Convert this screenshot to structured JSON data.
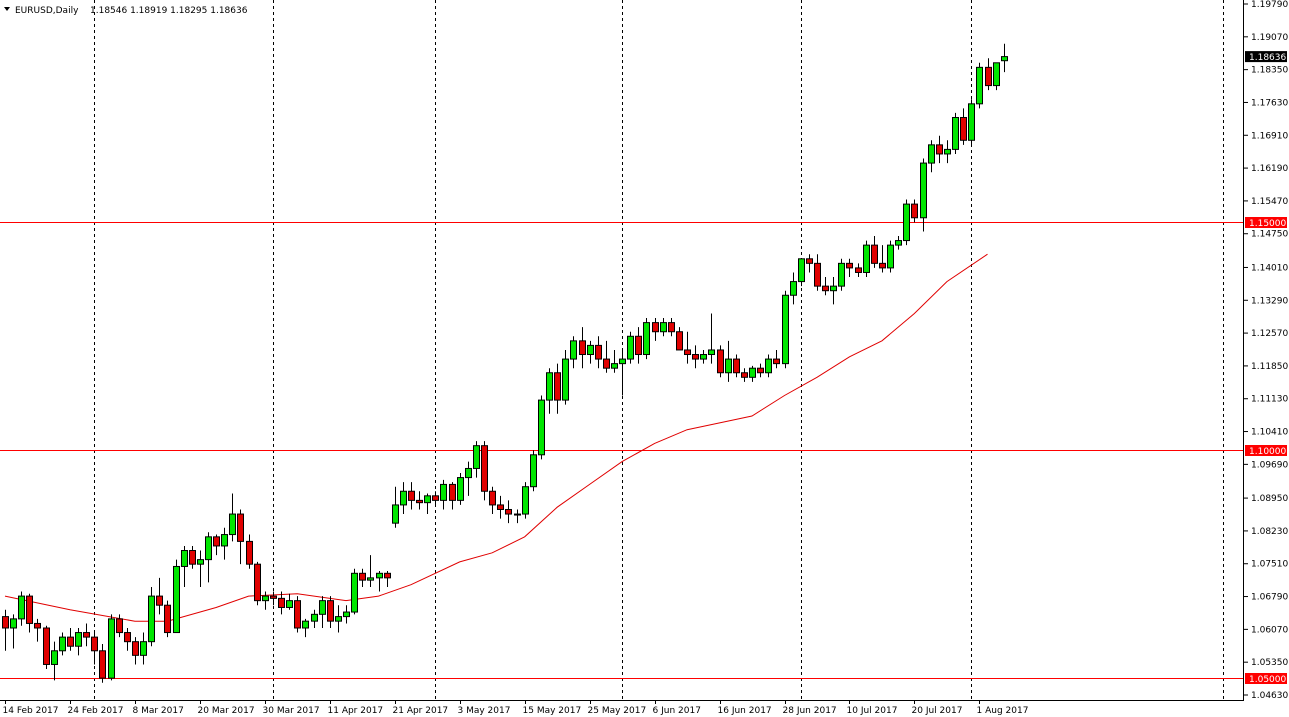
{
  "chart_data": {
    "type": "candlestick",
    "header": {
      "symbol": "EURUSD,Daily",
      "ohlc": "1.18546 1.18919 1.18295 1.18636"
    },
    "current_price": "1.18636",
    "ylim": [
      1.0463,
      1.1979
    ],
    "y_ticks": [
      "1.19790",
      "1.19070",
      "1.18350",
      "1.17630",
      "1.16910",
      "1.16190",
      "1.15470",
      "1.14750",
      "1.14010",
      "1.13290",
      "1.12570",
      "1.11850",
      "1.11130",
      "1.10410",
      "1.09690",
      "1.08950",
      "1.08230",
      "1.07510",
      "1.06790",
      "1.06070",
      "1.05350",
      "1.04630"
    ],
    "x_ticks": [
      {
        "i": 0,
        "label": "14 Feb 2017"
      },
      {
        "i": 8,
        "label": "24 Feb 2017"
      },
      {
        "i": 16,
        "label": "8 Mar 2017"
      },
      {
        "i": 24,
        "label": "20 Mar 2017"
      },
      {
        "i": 32,
        "label": "30 Mar 2017"
      },
      {
        "i": 40,
        "label": "11 Apr 2017"
      },
      {
        "i": 48,
        "label": "21 Apr 2017"
      },
      {
        "i": 56,
        "label": "3 May 2017"
      },
      {
        "i": 64,
        "label": "15 May 2017"
      },
      {
        "i": 72,
        "label": "25 May 2017"
      },
      {
        "i": 80,
        "label": "6 Jun 2017"
      },
      {
        "i": 88,
        "label": "16 Jun 2017"
      },
      {
        "i": 96,
        "label": "28 Jun 2017"
      },
      {
        "i": 104,
        "label": "10 Jul 2017"
      },
      {
        "i": 112,
        "label": "20 Jul 2017"
      },
      {
        "i": 120,
        "label": "1 Aug 2017"
      }
    ],
    "vertical_grid_at": [
      11,
      33,
      53,
      76,
      98,
      119,
      150
    ],
    "horizontal_levels": [
      {
        "value": 1.15,
        "label": "1.15000",
        "color": "#ff0000"
      },
      {
        "value": 1.1,
        "label": "1.10000",
        "color": "#ff0000"
      },
      {
        "value": 1.05,
        "label": "1.05000",
        "color": "#ff0000"
      }
    ],
    "moving_average": [
      {
        "i": 0,
        "y": 1.068
      },
      {
        "i": 8,
        "y": 1.065
      },
      {
        "i": 16,
        "y": 1.0625
      },
      {
        "i": 20,
        "y": 1.0625
      },
      {
        "i": 26,
        "y": 1.0655
      },
      {
        "i": 30,
        "y": 1.068
      },
      {
        "i": 36,
        "y": 1.0685
      },
      {
        "i": 42,
        "y": 1.067
      },
      {
        "i": 46,
        "y": 1.068
      },
      {
        "i": 50,
        "y": 1.0705
      },
      {
        "i": 56,
        "y": 1.0755
      },
      {
        "i": 60,
        "y": 1.0775
      },
      {
        "i": 64,
        "y": 1.081
      },
      {
        "i": 68,
        "y": 1.0875
      },
      {
        "i": 72,
        "y": 1.0925
      },
      {
        "i": 76,
        "y": 1.0975
      },
      {
        "i": 80,
        "y": 1.1015
      },
      {
        "i": 84,
        "y": 1.1045
      },
      {
        "i": 88,
        "y": 1.106
      },
      {
        "i": 92,
        "y": 1.1075
      },
      {
        "i": 96,
        "y": 1.112
      },
      {
        "i": 100,
        "y": 1.116
      },
      {
        "i": 104,
        "y": 1.1205
      },
      {
        "i": 108,
        "y": 1.124
      },
      {
        "i": 112,
        "y": 1.13
      },
      {
        "i": 116,
        "y": 1.137
      },
      {
        "i": 121,
        "y": 1.143
      }
    ],
    "candles": [
      [
        1.0635,
        1.065,
        1.056,
        1.061
      ],
      [
        1.061,
        1.064,
        1.0565,
        1.063
      ],
      [
        1.063,
        1.069,
        1.0615,
        1.068
      ],
      [
        1.068,
        1.0685,
        1.06,
        1.062
      ],
      [
        1.062,
        1.063,
        1.058,
        1.061
      ],
      [
        1.061,
        1.0615,
        1.052,
        1.053
      ],
      [
        1.053,
        1.058,
        1.0495,
        1.056
      ],
      [
        1.056,
        1.06,
        1.055,
        1.059
      ],
      [
        1.059,
        1.061,
        1.056,
        1.057
      ],
      [
        1.057,
        1.061,
        1.055,
        1.06
      ],
      [
        1.06,
        1.062,
        1.057,
        1.059
      ],
      [
        1.059,
        1.06,
        1.053,
        1.056
      ],
      [
        1.056,
        1.0575,
        1.049,
        1.05
      ],
      [
        1.05,
        1.064,
        1.0495,
        1.063
      ],
      [
        1.063,
        1.064,
        1.059,
        1.06
      ],
      [
        1.06,
        1.061,
        1.056,
        1.058
      ],
      [
        1.058,
        1.059,
        1.053,
        1.055
      ],
      [
        1.055,
        1.06,
        1.053,
        1.058
      ],
      [
        1.058,
        1.07,
        1.057,
        1.068
      ],
      [
        1.068,
        1.072,
        1.064,
        1.066
      ],
      [
        1.066,
        1.067,
        1.059,
        1.06
      ],
      [
        1.06,
        1.076,
        1.06,
        1.0745
      ],
      [
        1.0745,
        1.079,
        1.07,
        1.078
      ],
      [
        1.078,
        1.079,
        1.074,
        1.075
      ],
      [
        1.075,
        1.078,
        1.07,
        1.076
      ],
      [
        1.076,
        1.082,
        1.071,
        1.081
      ],
      [
        1.081,
        1.0815,
        1.077,
        1.079
      ],
      [
        1.079,
        1.083,
        1.076,
        1.0815
      ],
      [
        1.0815,
        1.0905,
        1.08,
        1.086
      ],
      [
        1.086,
        1.087,
        1.075,
        1.08
      ],
      [
        1.08,
        1.0815,
        1.074,
        1.075
      ],
      [
        1.075,
        1.0755,
        1.066,
        1.067
      ],
      [
        1.067,
        1.069,
        1.065,
        1.068
      ],
      [
        1.068,
        1.069,
        1.066,
        1.0675
      ],
      [
        1.0675,
        1.069,
        1.064,
        1.0655
      ],
      [
        1.0655,
        1.0685,
        1.065,
        1.067
      ],
      [
        1.067,
        1.068,
        1.06,
        1.061
      ],
      [
        1.061,
        1.063,
        1.059,
        1.0625
      ],
      [
        1.0625,
        1.065,
        1.061,
        1.064
      ],
      [
        1.064,
        1.068,
        1.061,
        1.067
      ],
      [
        1.067,
        1.068,
        1.061,
        1.0625
      ],
      [
        1.0625,
        1.066,
        1.06,
        1.0635
      ],
      [
        1.0635,
        1.066,
        1.062,
        1.0645
      ],
      [
        1.0645,
        1.074,
        1.064,
        1.073
      ],
      [
        1.073,
        1.074,
        1.07,
        1.0715
      ],
      [
        1.0715,
        1.077,
        1.07,
        1.072
      ],
      [
        1.072,
        1.0735,
        1.069,
        1.073
      ],
      [
        1.073,
        1.0735,
        1.07,
        1.072
      ],
      [
        1.084,
        1.092,
        1.083,
        1.088
      ],
      [
        1.088,
        1.093,
        1.086,
        1.091
      ],
      [
        1.091,
        1.093,
        1.087,
        1.089
      ],
      [
        1.089,
        1.091,
        1.087,
        1.0885
      ],
      [
        1.0885,
        1.0905,
        1.086,
        1.09
      ],
      [
        1.09,
        1.091,
        1.088,
        1.089
      ],
      [
        1.089,
        1.0935,
        1.087,
        1.0925
      ],
      [
        1.0925,
        1.093,
        1.087,
        1.089
      ],
      [
        1.089,
        1.095,
        1.088,
        1.094
      ],
      [
        1.094,
        1.0975,
        1.09,
        1.096
      ],
      [
        1.096,
        1.102,
        1.094,
        1.101
      ],
      [
        1.101,
        1.102,
        1.089,
        1.091
      ],
      [
        1.091,
        1.092,
        1.086,
        1.088
      ],
      [
        1.088,
        1.09,
        1.085,
        1.087
      ],
      [
        1.087,
        1.089,
        1.084,
        1.086
      ],
      [
        1.086,
        1.087,
        1.084,
        1.086
      ],
      [
        1.086,
        1.093,
        1.085,
        1.092
      ],
      [
        1.092,
        1.1,
        1.091,
        1.099
      ],
      [
        1.099,
        1.112,
        1.098,
        1.111
      ],
      [
        1.111,
        1.118,
        1.108,
        1.117
      ],
      [
        1.117,
        1.119,
        1.108,
        1.111
      ],
      [
        1.111,
        1.122,
        1.11,
        1.12
      ],
      [
        1.12,
        1.125,
        1.118,
        1.124
      ],
      [
        1.124,
        1.127,
        1.118,
        1.121
      ],
      [
        1.121,
        1.124,
        1.119,
        1.123
      ],
      [
        1.123,
        1.125,
        1.118,
        1.12
      ],
      [
        1.12,
        1.124,
        1.117,
        1.118
      ],
      [
        1.118,
        1.122,
        1.117,
        1.119
      ],
      [
        1.119,
        1.122,
        1.112,
        1.12
      ],
      [
        1.12,
        1.126,
        1.119,
        1.125
      ],
      [
        1.125,
        1.127,
        1.119,
        1.121
      ],
      [
        1.121,
        1.129,
        1.12,
        1.128
      ],
      [
        1.128,
        1.129,
        1.124,
        1.126
      ],
      [
        1.126,
        1.129,
        1.125,
        1.128
      ],
      [
        1.128,
        1.129,
        1.125,
        1.126
      ],
      [
        1.126,
        1.127,
        1.122,
        1.122
      ],
      [
        1.122,
        1.126,
        1.119,
        1.121
      ],
      [
        1.121,
        1.123,
        1.118,
        1.12
      ],
      [
        1.12,
        1.122,
        1.119,
        1.121
      ],
      [
        1.121,
        1.13,
        1.119,
        1.122
      ],
      [
        1.122,
        1.123,
        1.116,
        1.117
      ],
      [
        1.117,
        1.124,
        1.115,
        1.12
      ],
      [
        1.12,
        1.121,
        1.116,
        1.117
      ],
      [
        1.117,
        1.118,
        1.115,
        1.116
      ],
      [
        1.116,
        1.1185,
        1.115,
        1.118
      ],
      [
        1.118,
        1.119,
        1.116,
        1.117
      ],
      [
        1.117,
        1.121,
        1.116,
        1.12
      ],
      [
        1.12,
        1.122,
        1.118,
        1.119
      ],
      [
        1.119,
        1.135,
        1.118,
        1.134
      ],
      [
        1.134,
        1.139,
        1.132,
        1.137
      ],
      [
        1.137,
        1.142,
        1.136,
        1.142
      ],
      [
        1.142,
        1.143,
        1.139,
        1.141
      ],
      [
        1.141,
        1.143,
        1.135,
        1.136
      ],
      [
        1.136,
        1.138,
        1.134,
        1.135
      ],
      [
        1.135,
        1.138,
        1.132,
        1.136
      ],
      [
        1.136,
        1.142,
        1.135,
        1.141
      ],
      [
        1.141,
        1.142,
        1.138,
        1.14
      ],
      [
        1.14,
        1.141,
        1.138,
        1.139
      ],
      [
        1.139,
        1.146,
        1.138,
        1.145
      ],
      [
        1.145,
        1.147,
        1.14,
        1.141
      ],
      [
        1.141,
        1.145,
        1.139,
        1.14
      ],
      [
        1.14,
        1.146,
        1.139,
        1.145
      ],
      [
        1.145,
        1.147,
        1.144,
        1.146
      ],
      [
        1.146,
        1.155,
        1.145,
        1.154
      ],
      [
        1.154,
        1.155,
        1.15,
        1.151
      ],
      [
        1.151,
        1.164,
        1.148,
        1.163
      ],
      [
        1.163,
        1.168,
        1.161,
        1.167
      ],
      [
        1.167,
        1.169,
        1.163,
        1.165
      ],
      [
        1.165,
        1.168,
        1.163,
        1.166
      ],
      [
        1.166,
        1.174,
        1.165,
        1.173
      ],
      [
        1.173,
        1.175,
        1.167,
        1.168
      ],
      [
        1.168,
        1.177,
        1.167,
        1.176
      ],
      [
        1.176,
        1.185,
        1.175,
        1.184
      ],
      [
        1.184,
        1.186,
        1.179,
        1.18
      ],
      [
        1.18,
        1.185,
        1.179,
        1.185
      ],
      [
        1.18546,
        1.18919,
        1.18295,
        1.18636
      ]
    ]
  }
}
